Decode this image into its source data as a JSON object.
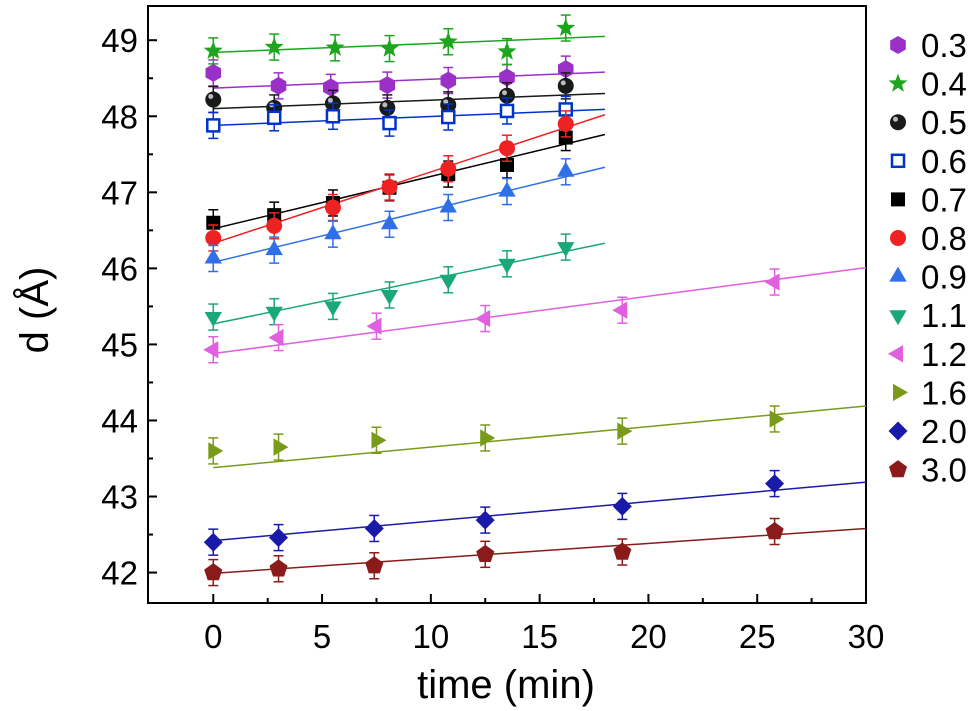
{
  "chart_data": {
    "type": "scatter",
    "title": "",
    "xlabel": "time (min)",
    "ylabel": "d (Å)",
    "xlim": [
      -3.0,
      30
    ],
    "ylim": [
      41.6,
      49.45
    ],
    "xticks": [
      "0",
      "5",
      "10",
      "15",
      "20",
      "25",
      "30"
    ],
    "yticks": [
      "42",
      "43",
      "44",
      "45",
      "46",
      "47",
      "48",
      "49"
    ],
    "legend_position": "right",
    "series": [
      {
        "name": "0.3",
        "marker": "hexagon",
        "color": "#9b30c8",
        "x": [
          0,
          3,
          5.4,
          8,
          10.8,
          13.5,
          16.2
        ],
        "y": [
          48.57,
          48.4,
          48.38,
          48.41,
          48.47,
          48.51,
          48.62
        ],
        "fit": {
          "x": [
            0,
            18
          ],
          "y": [
            48.37,
            48.58
          ]
        }
      },
      {
        "name": "0.4",
        "marker": "star",
        "color": "#1ea51e",
        "x": [
          0,
          2.8,
          5.6,
          8.1,
          10.8,
          13.5,
          16.2
        ],
        "y": [
          48.86,
          48.91,
          48.9,
          48.89,
          48.98,
          48.85,
          49.16
        ],
        "fit": {
          "x": [
            0,
            18
          ],
          "y": [
            48.84,
            49.05
          ]
        }
      },
      {
        "name": "0.5",
        "marker": "sphere",
        "color": "#1a1a1a",
        "x": [
          0,
          2.8,
          5.5,
          8,
          10.8,
          13.5,
          16.2
        ],
        "y": [
          48.22,
          48.11,
          48.17,
          48.11,
          48.15,
          48.27,
          48.4
        ],
        "fit": {
          "x": [
            0,
            18
          ],
          "y": [
            48.1,
            48.3
          ]
        }
      },
      {
        "name": "0.6",
        "marker": "open-square",
        "color": "#0033cc",
        "x": [
          0,
          2.8,
          5.5,
          8.1,
          10.8,
          13.5,
          16.2
        ],
        "y": [
          47.88,
          47.98,
          48.0,
          47.91,
          47.99,
          48.07,
          48.09
        ],
        "fit": {
          "x": [
            0,
            18
          ],
          "y": [
            47.88,
            48.09
          ]
        }
      },
      {
        "name": "0.7",
        "marker": "square",
        "color": "#000000",
        "x": [
          0,
          2.8,
          5.5,
          8.1,
          10.8,
          13.5,
          16.2
        ],
        "y": [
          46.6,
          46.7,
          46.86,
          47.06,
          47.24,
          47.36,
          47.72
        ],
        "fit": {
          "x": [
            0,
            18
          ],
          "y": [
            46.52,
            47.76
          ]
        }
      },
      {
        "name": "0.8",
        "marker": "circle",
        "color": "#ee2222",
        "x": [
          0,
          2.8,
          5.5,
          8.1,
          10.8,
          13.5,
          16.2
        ],
        "y": [
          46.4,
          46.56,
          46.8,
          47.07,
          47.31,
          47.58,
          47.9
        ],
        "fit": {
          "x": [
            0,
            18
          ],
          "y": [
            46.33,
            48.02
          ]
        }
      },
      {
        "name": "0.9",
        "marker": "triangle-up",
        "color": "#2f6fe8",
        "x": [
          0,
          2.8,
          5.5,
          8.1,
          10.8,
          13.5,
          16.2
        ],
        "y": [
          46.13,
          46.24,
          46.45,
          46.58,
          46.8,
          47.01,
          47.27
        ],
        "fit": {
          "x": [
            0,
            18
          ],
          "y": [
            46.08,
            47.33
          ]
        }
      },
      {
        "name": "1.1",
        "marker": "triangle-down",
        "color": "#1aa877",
        "x": [
          0,
          2.8,
          5.5,
          8.1,
          10.8,
          13.5,
          16.2
        ],
        "y": [
          45.36,
          45.43,
          45.5,
          45.65,
          45.85,
          46.06,
          46.28
        ],
        "fit": {
          "x": [
            0,
            18
          ],
          "y": [
            45.27,
            46.33
          ]
        }
      },
      {
        "name": "1.2",
        "marker": "triangle-left",
        "color": "#e060e0",
        "x": [
          0,
          3,
          7.5,
          12.5,
          18.8,
          25.8
        ],
        "y": [
          44.93,
          45.09,
          45.24,
          45.34,
          45.45,
          45.82
        ],
        "fit": {
          "x": [
            0,
            30
          ],
          "y": [
            44.88,
            46.01
          ]
        }
      },
      {
        "name": "1.6",
        "marker": "triangle-right",
        "color": "#7a9a1a",
        "x": [
          0,
          3,
          7.5,
          12.5,
          18.8,
          25.8
        ],
        "y": [
          43.6,
          43.65,
          43.74,
          43.77,
          43.86,
          44.02
        ],
        "fit": {
          "x": [
            0,
            30
          ],
          "y": [
            43.38,
            44.19
          ]
        }
      },
      {
        "name": "2.0",
        "marker": "diamond",
        "color": "#1a1aaa",
        "x": [
          0,
          3,
          7.4,
          12.5,
          18.8,
          25.8
        ],
        "y": [
          42.4,
          42.46,
          42.58,
          42.69,
          42.87,
          43.17
        ],
        "fit": {
          "x": [
            0,
            30
          ],
          "y": [
            42.42,
            43.19
          ]
        }
      },
      {
        "name": "3.0",
        "marker": "pentagon",
        "color": "#8b1a1a",
        "x": [
          0,
          3,
          7.4,
          12.5,
          18.8,
          25.8
        ],
        "y": [
          42.0,
          42.05,
          42.09,
          42.24,
          42.27,
          42.54
        ],
        "fit": {
          "x": [
            0,
            30
          ],
          "y": [
            41.99,
            42.58
          ]
        }
      }
    ]
  }
}
